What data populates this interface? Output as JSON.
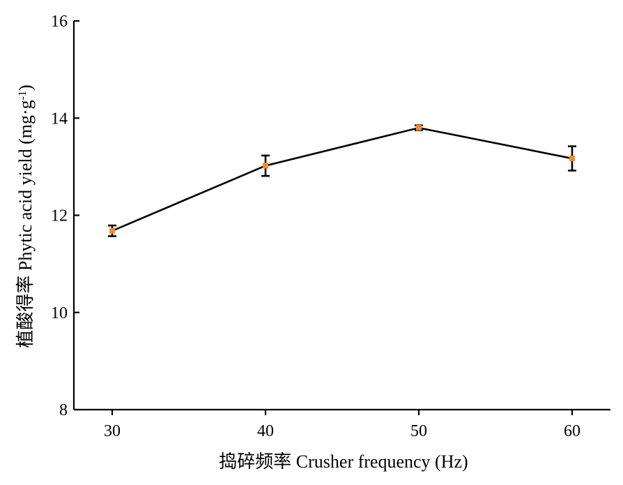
{
  "chart_data": {
    "type": "line",
    "x": [
      30,
      40,
      50,
      60
    ],
    "series": [
      {
        "values": [
          11.68,
          13.02,
          13.8,
          13.17
        ],
        "errors": [
          0.11,
          0.21,
          0.05,
          0.25
        ]
      }
    ],
    "xticks": [
      "30",
      "40",
      "50",
      "60"
    ],
    "yticks": [
      "8",
      "10",
      "12",
      "14",
      "16"
    ],
    "xlim": [
      27.5,
      62.5
    ],
    "ylim": [
      8,
      16
    ],
    "xlabel": "捣碎频率 Crusher frequency (Hz)",
    "ylabel": "植酸得率 Phytic acid yield (mg·g",
    "ylabel_sup": "-1",
    "ylabel_end": ")",
    "grid": false,
    "colors": {
      "marker": "#f28c28",
      "line": "#000000"
    }
  }
}
